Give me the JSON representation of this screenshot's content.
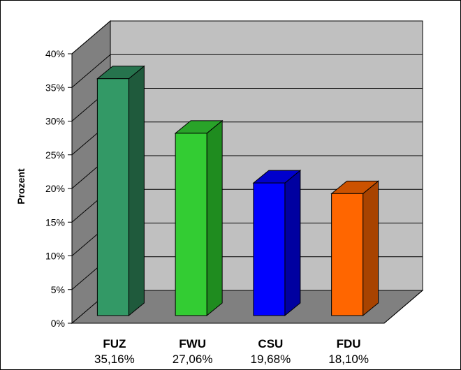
{
  "chart_data": {
    "type": "bar",
    "ylabel": "Prozent",
    "ylim": [
      0,
      40
    ],
    "yticks": [
      "0%",
      "5%",
      "10%",
      "15%",
      "20%",
      "25%",
      "30%",
      "35%",
      "40%"
    ],
    "grid": true,
    "style": "3d",
    "categories": [
      "FUZ",
      "FWU",
      "CSU",
      "FDU"
    ],
    "values": [
      35.16,
      27.06,
      19.68,
      18.1
    ],
    "value_labels": [
      "35,16%",
      "27,06%",
      "19,68%",
      "18,10%"
    ],
    "colors": [
      {
        "front": "#339966",
        "side": "#1f5a3c",
        "top": "#26734d"
      },
      {
        "front": "#33cc33",
        "side": "#1f8c1f",
        "top": "#29a329"
      },
      {
        "front": "#0000ff",
        "side": "#0000a0",
        "top": "#0000cc"
      },
      {
        "front": "#ff6600",
        "side": "#a84300",
        "top": "#cc5200"
      }
    ],
    "wall_color": "#c0c0c0",
    "side_wall_color": "#808080",
    "floor_color": "#808080"
  }
}
